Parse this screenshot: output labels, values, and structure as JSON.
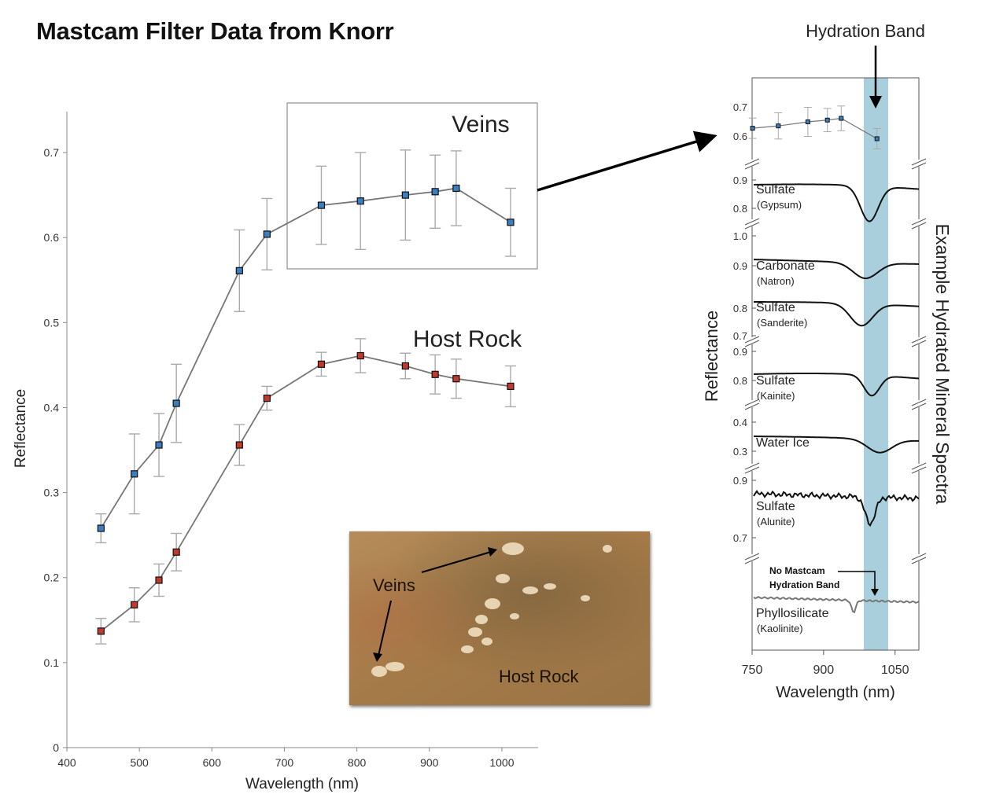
{
  "title": "Mastcam Filter Data from Knorr",
  "colors": {
    "veins_marker": "#3a7fc0",
    "host_marker": "#c0392b",
    "hydration_band": "#a9cfdc",
    "line": "#777777",
    "errorbar": "#aaaaaa"
  },
  "chart_data": [
    {
      "type": "line",
      "xlabel": "Wavelength (nm)",
      "ylabel": "Reflectance",
      "xlim": [
        400,
        1050
      ],
      "ylim": [
        0,
        0.75
      ],
      "xticks": [
        "400",
        "500",
        "600",
        "700",
        "800",
        "900",
        "1000"
      ],
      "yticks": [
        "0",
        "0.1",
        "0.2",
        "0.3",
        "0.4",
        "0.5",
        "0.6",
        "0.7"
      ],
      "x": [
        447,
        493,
        527,
        551,
        638,
        676,
        751,
        805,
        867,
        908,
        937,
        1012
      ],
      "series": [
        {
          "name": "Veins",
          "values": [
            0.258,
            0.322,
            0.356,
            0.405,
            0.561,
            0.604,
            0.638,
            0.643,
            0.65,
            0.654,
            0.658,
            0.618
          ],
          "errors": [
            0.017,
            0.047,
            0.037,
            0.046,
            0.048,
            0.042,
            0.046,
            0.057,
            0.053,
            0.043,
            0.044,
            0.04
          ]
        },
        {
          "name": "Host Rock",
          "values": [
            0.137,
            0.168,
            0.197,
            0.23,
            0.356,
            0.411,
            0.451,
            0.461,
            0.449,
            0.439,
            0.434,
            0.425
          ],
          "errors": [
            0.015,
            0.02,
            0.019,
            0.022,
            0.024,
            0.014,
            0.014,
            0.02,
            0.015,
            0.023,
            0.023,
            0.024
          ]
        }
      ],
      "annotations": {
        "zoom_box_label": "Veins",
        "host_label": "Host Rock"
      }
    },
    {
      "type": "line",
      "ylabel": "Reflectance",
      "xlabel": "Wavelength (nm)",
      "xticks": [
        "750",
        "900",
        "1050"
      ],
      "xlim": [
        750,
        1100
      ],
      "highlight_band": [
        985,
        1035
      ],
      "header": "Hydration Band",
      "side_title": "Example Hydrated Mineral Spectra",
      "mastcam_inset": {
        "yticks": [
          "0.7",
          "0.6"
        ],
        "x": [
          751,
          805,
          867,
          908,
          937,
          1012
        ],
        "values": [
          0.624,
          0.632,
          0.646,
          0.652,
          0.658,
          0.588
        ],
        "errors": [
          0.07,
          0.09,
          0.1,
          0.08,
          0.085,
          0.07
        ]
      },
      "mineral_spectra": [
        {
          "name": "Sulfate",
          "sub": "(Gypsum)",
          "yticks": [
            "0.9",
            "0.8"
          ]
        },
        {
          "name": "Carbonate",
          "sub": "(Natron)",
          "yticks": [
            "1.0",
            "0.9"
          ]
        },
        {
          "name": "Sulfate",
          "sub": "(Sanderite)",
          "yticks": [
            "0.8",
            "0.7"
          ]
        },
        {
          "name": "Sulfate",
          "sub": "(Kainite)",
          "yticks": [
            "0.9",
            "0.8"
          ]
        },
        {
          "name": "Water Ice",
          "sub": "",
          "yticks": [
            "0.4",
            "0.3"
          ]
        },
        {
          "name": "Sulfate",
          "sub": "(Alunite)",
          "yticks": [
            "0.9",
            "0.7"
          ]
        },
        {
          "name": "Phyllosilicate",
          "sub": "(Kaolinite)",
          "yticks": []
        }
      ],
      "no_band_note_line1": "No Mastcam",
      "no_band_note_line2": "Hydration Band"
    }
  ],
  "photo": {
    "label_veins": "Veins",
    "label_host": "Host Rock"
  }
}
